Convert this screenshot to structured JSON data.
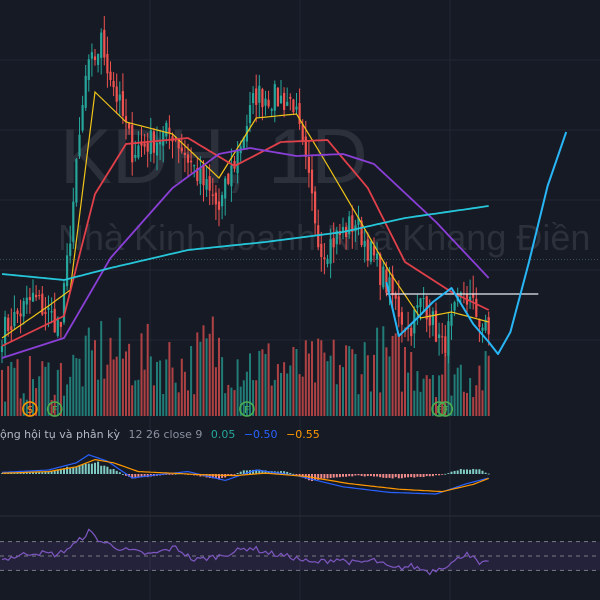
{
  "chart_data": {
    "type": "candlestick",
    "watermark": {
      "symbol": "KDH, 1D",
      "company": "Nhà Kinh doanh Nhà Khang Điền"
    },
    "colors": {
      "background": "#161a25",
      "up": "#26a69a",
      "down": "#ef5350",
      "ma_short": "#f0c419",
      "ma_mid": "#e0404a",
      "ma_long": "#8a3fd6",
      "ma_200": "#26c6da",
      "projection": "#29b6f6",
      "resistance": "#e6ecf2",
      "macd_line": "#2962ff",
      "signal_line": "#ff9800",
      "rsi_line": "#7e57c2"
    },
    "price_axis": {
      "min": 20,
      "max": 41
    },
    "price_anchors": [
      {
        "bar": 0,
        "close": 24.9
      },
      {
        "bar": 10,
        "close": 26.6
      },
      {
        "bar": 19,
        "close": 25.2
      },
      {
        "bar": 27,
        "close": 37.6
      },
      {
        "bar": 32,
        "close": 39.4
      },
      {
        "bar": 42,
        "close": 34.0
      },
      {
        "bar": 55,
        "close": 34.9
      },
      {
        "bar": 70,
        "close": 31.0
      },
      {
        "bar": 82,
        "close": 36.8
      },
      {
        "bar": 94,
        "close": 36.4
      },
      {
        "bar": 103,
        "close": 29.0
      },
      {
        "bar": 114,
        "close": 30.4
      },
      {
        "bar": 124,
        "close": 27.3
      },
      {
        "bar": 131,
        "close": 25.0
      },
      {
        "bar": 136,
        "close": 26.6
      },
      {
        "bar": 142,
        "close": 24.1
      },
      {
        "bar": 149,
        "close": 26.9
      },
      {
        "bar": 157,
        "close": 24.7
      }
    ],
    "moving_averages": [
      {
        "key": "ma_short",
        "anchors": [
          [
            0,
            24.6
          ],
          [
            15,
            26.2
          ],
          [
            22,
            27.0
          ],
          [
            30,
            36.9
          ],
          [
            40,
            35.4
          ],
          [
            55,
            34.8
          ],
          [
            70,
            32.6
          ],
          [
            82,
            35.6
          ],
          [
            95,
            35.8
          ],
          [
            104,
            33.5
          ],
          [
            115,
            30.6
          ],
          [
            125,
            27.9
          ],
          [
            135,
            25.6
          ],
          [
            145,
            25.9
          ],
          [
            157,
            25.4
          ]
        ]
      },
      {
        "key": "ma_mid",
        "anchors": [
          [
            0,
            24.2
          ],
          [
            20,
            25.7
          ],
          [
            30,
            31.8
          ],
          [
            40,
            34.3
          ],
          [
            60,
            34.6
          ],
          [
            75,
            33.2
          ],
          [
            90,
            34.4
          ],
          [
            105,
            34.5
          ],
          [
            118,
            32.1
          ],
          [
            130,
            28.4
          ],
          [
            145,
            26.9
          ],
          [
            157,
            26.0
          ]
        ]
      },
      {
        "key": "ma_long",
        "anchors": [
          [
            0,
            23.6
          ],
          [
            20,
            24.6
          ],
          [
            35,
            28.6
          ],
          [
            55,
            32.1
          ],
          [
            70,
            33.8
          ],
          [
            80,
            34.1
          ],
          [
            95,
            33.7
          ],
          [
            110,
            33.8
          ],
          [
            120,
            33.3
          ],
          [
            140,
            30.4
          ],
          [
            157,
            27.6
          ]
        ]
      },
      {
        "key": "ma_200",
        "anchors": [
          [
            0,
            27.8
          ],
          [
            20,
            27.5
          ],
          [
            35,
            28.1
          ],
          [
            60,
            29.0
          ],
          [
            85,
            29.4
          ],
          [
            110,
            29.9
          ],
          [
            130,
            30.6
          ],
          [
            157,
            31.2
          ]
        ]
      }
    ],
    "resistance_level": 26.8,
    "projection": [
      [
        124,
        27.4
      ],
      [
        128,
        24.7
      ],
      [
        134,
        25.6
      ],
      [
        139,
        26.4
      ],
      [
        145,
        27.1
      ],
      [
        152,
        25.3
      ],
      [
        157,
        24.4
      ],
      [
        160,
        23.8
      ],
      [
        164,
        24.9
      ],
      [
        170,
        28.4
      ],
      [
        176,
        32.2
      ],
      [
        182,
        34.9
      ]
    ],
    "volume_anchors": [
      [
        0,
        0.3
      ],
      [
        20,
        0.35
      ],
      [
        27,
        0.45
      ],
      [
        32,
        0.55
      ],
      [
        45,
        0.5
      ],
      [
        55,
        0.45
      ],
      [
        60,
        0.4
      ],
      [
        68,
        0.6
      ],
      [
        72,
        0.5
      ],
      [
        80,
        0.45
      ],
      [
        95,
        0.4
      ],
      [
        110,
        0.45
      ],
      [
        122,
        0.5
      ],
      [
        130,
        0.45
      ],
      [
        140,
        0.4
      ],
      [
        157,
        0.35
      ]
    ],
    "event_markers": [
      {
        "bar": 9,
        "label": "S",
        "color": "#ff9800"
      },
      {
        "bar": 17,
        "label": "F",
        "color": "#4caf50"
      },
      {
        "bar": 79,
        "label": "F",
        "color": "#4caf50"
      },
      {
        "bar": 141,
        "label": "F",
        "color": "#4caf50"
      },
      {
        "bar": 143,
        "label": "F",
        "color": "#4caf50"
      }
    ],
    "macd": {
      "title": "ộng hội tụ và phân kỳ",
      "params": "12 26 close 9",
      "histogram": "0.05",
      "macd": "−0.50",
      "signal": "−0.55",
      "histogram_anchors": [
        [
          0,
          0.1
        ],
        [
          15,
          0.3
        ],
        [
          24,
          1.0
        ],
        [
          28,
          1.6
        ],
        [
          32,
          1.2
        ],
        [
          38,
          0.2
        ],
        [
          42,
          -0.6
        ],
        [
          50,
          -0.2
        ],
        [
          58,
          0.1
        ],
        [
          70,
          -0.7
        ],
        [
          78,
          0.4
        ],
        [
          84,
          0.5
        ],
        [
          92,
          0.3
        ],
        [
          100,
          -0.8
        ],
        [
          108,
          -0.4
        ],
        [
          115,
          -0.2
        ],
        [
          125,
          -0.5
        ],
        [
          135,
          -0.4
        ],
        [
          142,
          -0.1
        ],
        [
          148,
          0.6
        ],
        [
          154,
          0.5
        ],
        [
          157,
          0.05
        ]
      ],
      "macd_anchors": [
        [
          0,
          0.2
        ],
        [
          15,
          0.5
        ],
        [
          24,
          1.4
        ],
        [
          28,
          2.4
        ],
        [
          34,
          1.6
        ],
        [
          42,
          -0.5
        ],
        [
          50,
          -0.1
        ],
        [
          60,
          0.3
        ],
        [
          72,
          -0.8
        ],
        [
          82,
          0.5
        ],
        [
          95,
          -0.2
        ],
        [
          110,
          -1.6
        ],
        [
          125,
          -2.3
        ],
        [
          140,
          -2.5
        ],
        [
          150,
          -1.2
        ],
        [
          157,
          -0.5
        ]
      ],
      "signal_anchors": [
        [
          0,
          0.1
        ],
        [
          15,
          0.3
        ],
        [
          24,
          0.9
        ],
        [
          30,
          1.8
        ],
        [
          36,
          1.4
        ],
        [
          44,
          0.3
        ],
        [
          55,
          0.1
        ],
        [
          65,
          -0.1
        ],
        [
          75,
          -0.2
        ],
        [
          85,
          0.1
        ],
        [
          98,
          -0.3
        ],
        [
          112,
          -1.2
        ],
        [
          128,
          -1.9
        ],
        [
          142,
          -2.2
        ],
        [
          152,
          -1.3
        ],
        [
          157,
          -0.55
        ]
      ]
    },
    "rsi": {
      "range": [
        0,
        100
      ],
      "bands": [
        70,
        30
      ],
      "anchors": [
        [
          0,
          45
        ],
        [
          10,
          55
        ],
        [
          18,
          52
        ],
        [
          24,
          68
        ],
        [
          28,
          84
        ],
        [
          32,
          70
        ],
        [
          40,
          58
        ],
        [
          48,
          52
        ],
        [
          56,
          62
        ],
        [
          62,
          44
        ],
        [
          70,
          50
        ],
        [
          80,
          62
        ],
        [
          86,
          54
        ],
        [
          94,
          48
        ],
        [
          100,
          40
        ],
        [
          108,
          46
        ],
        [
          114,
          40
        ],
        [
          120,
          44
        ],
        [
          126,
          32
        ],
        [
          132,
          36
        ],
        [
          138,
          28
        ],
        [
          146,
          42
        ],
        [
          150,
          56
        ],
        [
          154,
          38
        ],
        [
          157,
          40
        ]
      ]
    }
  }
}
